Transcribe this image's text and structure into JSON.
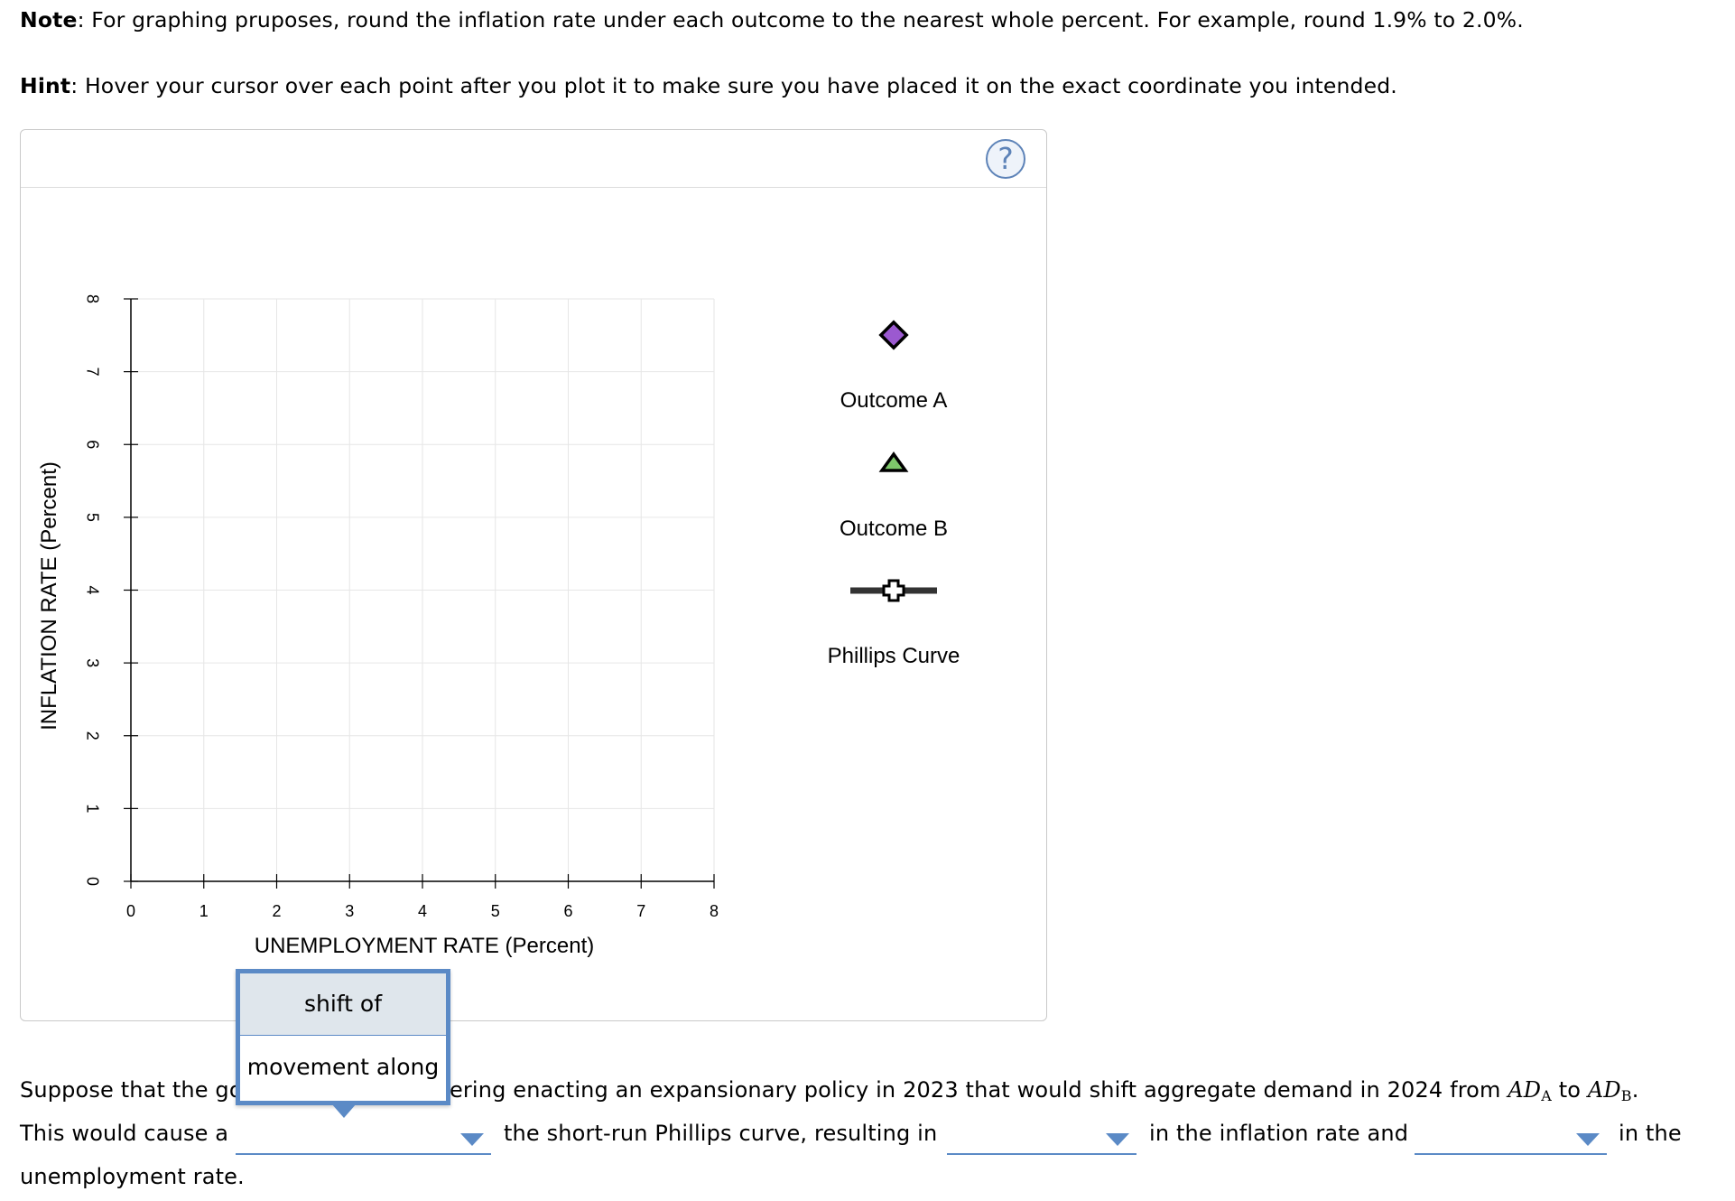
{
  "note": {
    "label": "Note",
    "text": ": For graphing pruposes, round the inflation rate under each outcome to the nearest whole percent. For example, round 1.9% to 2.0%."
  },
  "hint": {
    "label": "Hint",
    "text": ": Hover your cursor over each point after you plot it to make sure you have placed it on the exact coordinate you intended."
  },
  "help_icon": "question-mark-icon",
  "chart_data": {
    "type": "scatter",
    "title": "",
    "xlabel": "UNEMPLOYMENT RATE (Percent)",
    "ylabel": "INFLATION RATE (Percent)",
    "xlim": [
      0,
      8
    ],
    "ylim": [
      0,
      8
    ],
    "xticks": [
      "0",
      "1",
      "2",
      "3",
      "4",
      "5",
      "6",
      "7",
      "8"
    ],
    "yticks": [
      "0",
      "1",
      "2",
      "3",
      "4",
      "5",
      "6",
      "7",
      "8"
    ],
    "grid": true,
    "series": []
  },
  "legend": {
    "items": [
      {
        "label": "Outcome A",
        "icon": "diamond-icon",
        "color": "#9b59d0"
      },
      {
        "label": "Outcome B",
        "icon": "triangle-icon",
        "color": "#7ec86a"
      },
      {
        "label": "Phillips Curve",
        "icon": "line-cross-icon",
        "color": "#333333"
      }
    ]
  },
  "dropdown_popup": {
    "options": [
      "shift of",
      "movement along"
    ]
  },
  "question": {
    "line1_prefix": "Suppose that the go",
    "line1_suffix": "ering enacting an expansionary policy in 2023 that would shift aggregate demand in 2024 from",
    "ad_a": "AD",
    "ad_a_sub": "A",
    "to_word": "to",
    "ad_b": "AD",
    "ad_b_sub": "B",
    "period": ".",
    "line2_part1": "This would cause a",
    "line2_part2": "the short-run Phillips curve, resulting in",
    "line2_part3": "in the inflation rate and",
    "line2_part4": "in the",
    "line3": "unemployment rate."
  }
}
